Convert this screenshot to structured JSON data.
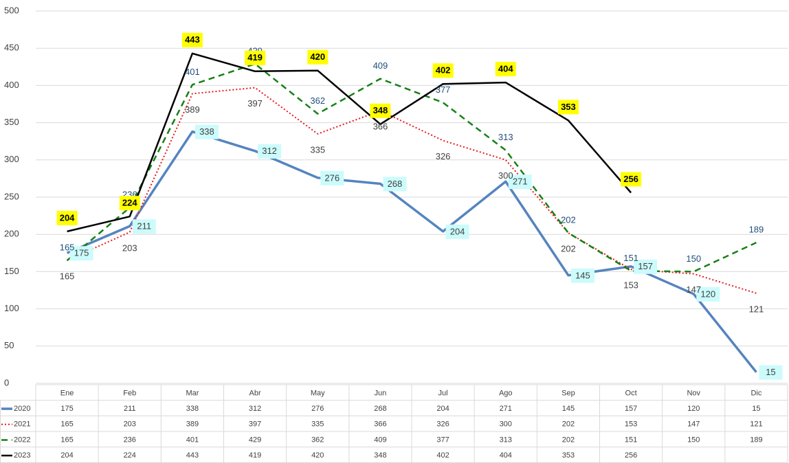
{
  "chart_data": {
    "type": "line",
    "categories": [
      "Ene",
      "Feb",
      "Mar",
      "Abr",
      "May",
      "Jun",
      "Jul",
      "Ago",
      "Sep",
      "Oct",
      "Nov",
      "Dic"
    ],
    "series": [
      {
        "name": "2020",
        "color": "#5584bf",
        "values": [
          175,
          211,
          338,
          312,
          276,
          268,
          204,
          271,
          145,
          157,
          120,
          15
        ]
      },
      {
        "name": "2021",
        "color": "#e8161b",
        "values": [
          165,
          203,
          389,
          397,
          335,
          366,
          326,
          300,
          202,
          153,
          147,
          121
        ]
      },
      {
        "name": "2022",
        "color": "#168016",
        "values": [
          165,
          236,
          401,
          429,
          362,
          409,
          377,
          313,
          202,
          151,
          150,
          189
        ]
      },
      {
        "name": "2023",
        "color": "#000000",
        "values": [
          204,
          224,
          443,
          419,
          420,
          348,
          402,
          404,
          353,
          256,
          null,
          null
        ]
      }
    ],
    "ylim": [
      0,
      500
    ],
    "yticks": [
      0,
      50,
      100,
      150,
      200,
      250,
      300,
      350,
      400,
      450,
      500
    ],
    "grid": true
  }
}
